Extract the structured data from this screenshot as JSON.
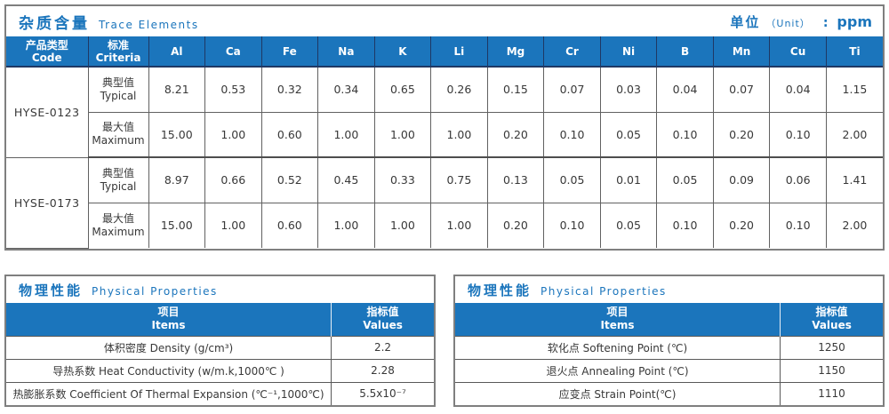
{
  "colors": {
    "accent_blue": "#1B75BC",
    "header_border": "#1F3864",
    "outer_border": "#7F7F7F",
    "cell_border": "#595959",
    "text": "#383838"
  },
  "trace_table": {
    "title_cn": "杂质含量",
    "title_en": "Trace Elements",
    "unit_cn": "单位",
    "unit_en": "（Unit）",
    "unit_colon": ":",
    "unit_value": "ppm",
    "col1_cn": "产品类型",
    "col1_en": "Code",
    "col2_cn": "标准",
    "col2_en": "Criteria",
    "elements": [
      "Al",
      "Ca",
      "Fe",
      "Na",
      "K",
      "Li",
      "Mg",
      "Cr",
      "Ni",
      "B",
      "Mn",
      "Cu",
      "Ti"
    ],
    "rows": [
      {
        "code": "HYSE-0123",
        "criteria_cn": "典型值",
        "criteria_en": "Typical",
        "values": [
          "8.21",
          "0.53",
          "0.32",
          "0.34",
          "0.65",
          "0.26",
          "0.15",
          "0.07",
          "0.03",
          "0.04",
          "0.07",
          "0.04",
          "1.15"
        ]
      },
      {
        "criteria_cn": "最大值",
        "criteria_en": "Maximum",
        "values": [
          "15.00",
          "1.00",
          "0.60",
          "1.00",
          "1.00",
          "1.00",
          "0.20",
          "0.10",
          "0.05",
          "0.10",
          "0.20",
          "0.10",
          "2.00"
        ]
      },
      {
        "code": "HYSE-0173",
        "criteria_cn": "典型值",
        "criteria_en": "Typical",
        "values": [
          "8.97",
          "0.66",
          "0.52",
          "0.45",
          "0.33",
          "0.75",
          "0.13",
          "0.05",
          "0.01",
          "0.05",
          "0.09",
          "0.06",
          "1.41"
        ]
      },
      {
        "criteria_cn": "最大值",
        "criteria_en": "Maximum",
        "values": [
          "15.00",
          "1.00",
          "0.60",
          "1.00",
          "1.00",
          "1.00",
          "0.20",
          "0.10",
          "0.05",
          "0.10",
          "0.20",
          "0.10",
          "2.00"
        ]
      }
    ]
  },
  "physical_left": {
    "title_cn": "物理性能",
    "title_en": "Physical Properties",
    "items_cn": "项目",
    "items_en": "Items",
    "values_cn": "指标值",
    "values_en": "Values",
    "rows": [
      {
        "item": "体积密度 Density (g/cm³)",
        "value": "2.2"
      },
      {
        "item": "导热系数 Heat Conductivity (w/m.k,1000℃ )",
        "value": "2.28"
      },
      {
        "item": "热膨胀系数 Coefficient Of Thermal Expansion (℃⁻¹,1000℃)",
        "value": "5.5x10⁻⁷"
      }
    ]
  },
  "physical_right": {
    "title_cn": "物理性能",
    "title_en": "Physical Properties",
    "items_cn": "项目",
    "items_en": "Items",
    "values_cn": "指标值",
    "values_en": "Values",
    "rows": [
      {
        "item": "软化点 Softening Point (℃)",
        "value": "1250"
      },
      {
        "item": "退火点 Annealing Point (℃)",
        "value": "1150"
      },
      {
        "item": "应变点 Strain Point(℃)",
        "value": "1110"
      }
    ]
  }
}
